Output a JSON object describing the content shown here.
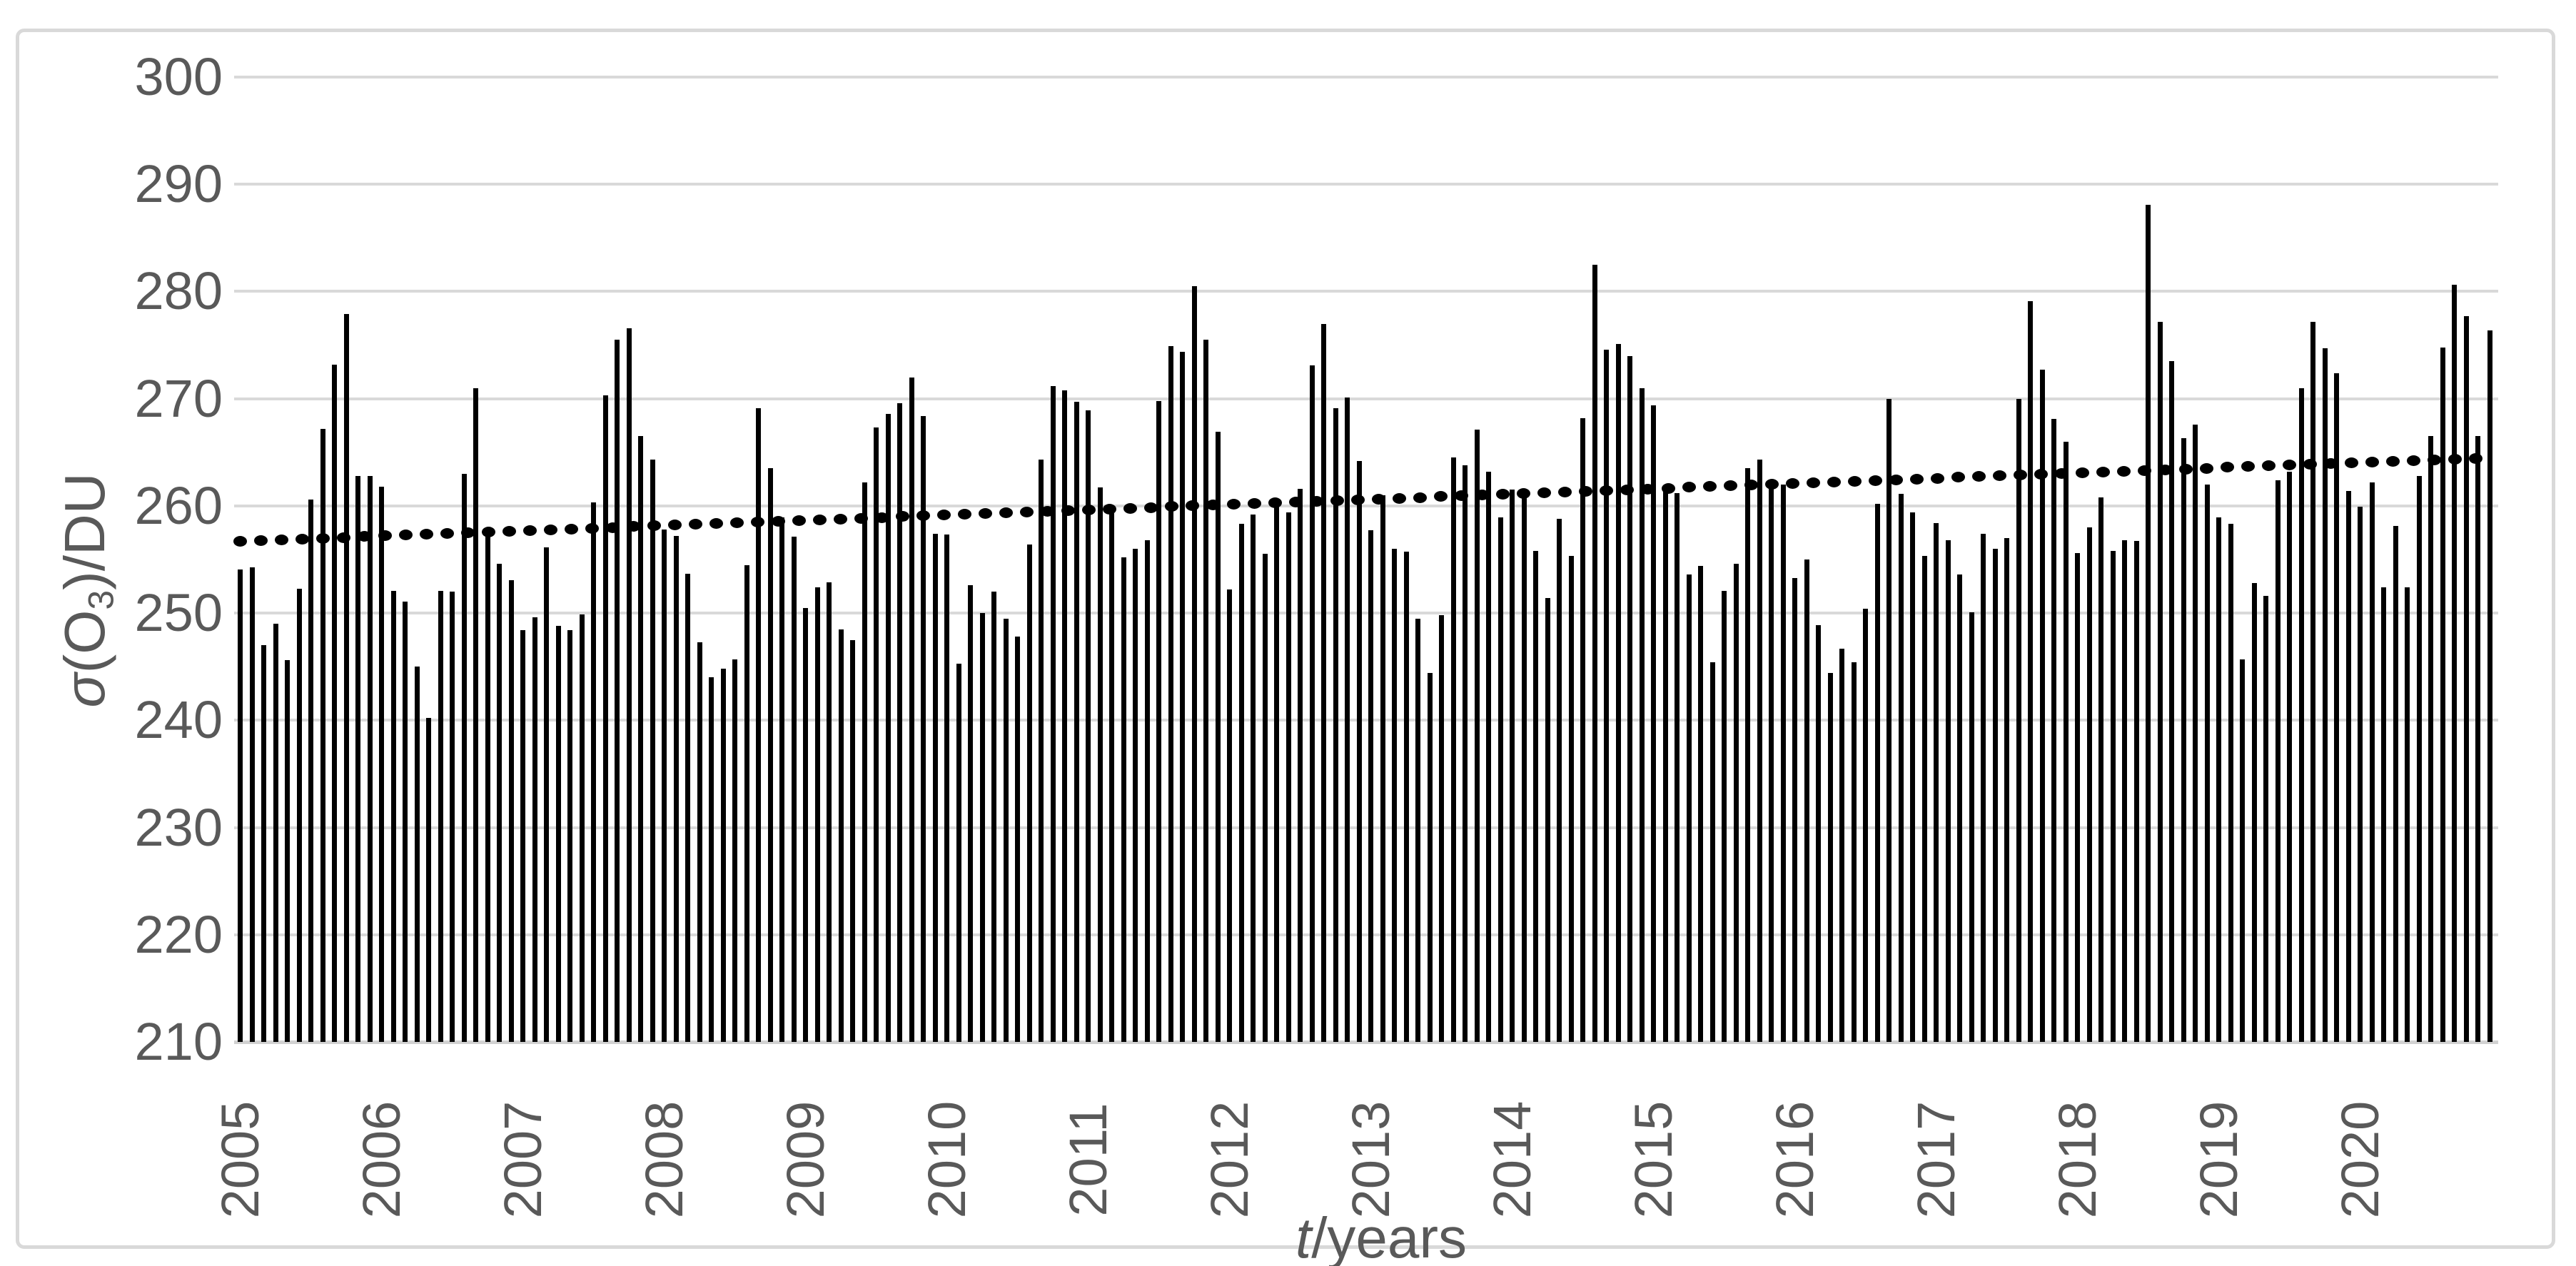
{
  "chart_data": {
    "type": "bar",
    "title": "",
    "xlabel": "t/years",
    "ylabel": "σ(O3)/DU",
    "xlabel_parts": {
      "t": "t",
      "rest": "/years"
    },
    "ylabel_parts": {
      "sigma": "σ",
      "open": "(O",
      "sub": "3",
      "close": ")/DU"
    },
    "ylim": [
      210,
      300
    ],
    "yticks": [
      "210",
      "220",
      "230",
      "240",
      "250",
      "260",
      "270",
      "280",
      "290",
      "300"
    ],
    "grid": "horizontal",
    "legend": "none",
    "bar_color": "#000000",
    "grid_color": "#D9D9D9",
    "text_color": "#595959",
    "years": [
      "2005",
      "2006",
      "2007",
      "2008",
      "2009",
      "2010",
      "2011",
      "2012",
      "2013",
      "2014",
      "2015",
      "2016",
      "2017",
      "2018",
      "2019",
      "2020"
    ],
    "months_per_year": 12,
    "values_by_year": {
      "2005": [
        254.1,
        254.3,
        247.0,
        249.0,
        245.6,
        252.3,
        260.6,
        267.2,
        273.2,
        277.9,
        262.8,
        262.8
      ],
      "2006": [
        261.8,
        252.1,
        251.1,
        245.0,
        240.2,
        252.1,
        252.0,
        263.0,
        271.0,
        257.4,
        254.6,
        253.1
      ],
      "2007": [
        248.4,
        249.6,
        256.1,
        248.8,
        248.4,
        249.9,
        260.3,
        270.3,
        275.5,
        276.6,
        266.5,
        264.3
      ],
      "2008": [
        257.8,
        257.2,
        253.7,
        247.3,
        244.0,
        244.8,
        245.7,
        254.5,
        269.1,
        263.5,
        258.9,
        257.1
      ],
      "2009": [
        250.5,
        252.4,
        252.9,
        248.5,
        247.5,
        262.2,
        267.3,
        268.6,
        269.6,
        272.0,
        268.4,
        257.4
      ],
      "2010": [
        257.3,
        245.3,
        252.6,
        250.0,
        252.0,
        249.5,
        247.8,
        256.4,
        264.3,
        271.2,
        270.8,
        269.7
      ],
      "2011": [
        268.9,
        261.7,
        260.0,
        255.2,
        256.0,
        256.8,
        269.8,
        274.9,
        274.4,
        280.5,
        275.5,
        266.9
      ],
      "2012": [
        252.2,
        258.3,
        259.2,
        255.5,
        260.3,
        259.4,
        261.6,
        273.1,
        277.0,
        269.1,
        270.1,
        264.2
      ],
      "2013": [
        257.7,
        261.0,
        256.0,
        255.7,
        249.5,
        244.4,
        249.8,
        264.5,
        263.8,
        267.1,
        263.2,
        258.9
      ],
      "2014": [
        261.5,
        261.3,
        255.8,
        251.4,
        258.8,
        255.3,
        268.2,
        282.5,
        274.6,
        275.1,
        274.0,
        271.0
      ],
      "2015": [
        269.4,
        261.6,
        261.2,
        253.6,
        254.4,
        245.4,
        252.1,
        254.6,
        263.5,
        264.3,
        262.1,
        262.0
      ],
      "2016": [
        253.3,
        255.0,
        248.9,
        244.4,
        246.7,
        245.4,
        250.4,
        260.2,
        270.0,
        261.1,
        259.4,
        255.3
      ],
      "2017": [
        258.4,
        256.8,
        253.6,
        250.1,
        257.4,
        256.0,
        257.0,
        270.0,
        279.1,
        272.7,
        268.1,
        266.0
      ],
      "2018": [
        255.6,
        258.0,
        260.8,
        255.8,
        256.8,
        256.7,
        288.1,
        277.2,
        273.5,
        266.3,
        267.6,
        262.0
      ],
      "2019": [
        258.9,
        258.3,
        245.7,
        252.8,
        251.6,
        262.4,
        263.2,
        271.0,
        277.2,
        274.7,
        272.4,
        261.4
      ],
      "2020": [
        259.9,
        262.2,
        252.4,
        258.1,
        252.4,
        262.8,
        266.5,
        274.8,
        280.6,
        277.7,
        266.5,
        276.4
      ]
    },
    "trendline": {
      "style": "dotted",
      "color": "#000000",
      "start_value": 256.7,
      "end_value": 264.5
    }
  }
}
